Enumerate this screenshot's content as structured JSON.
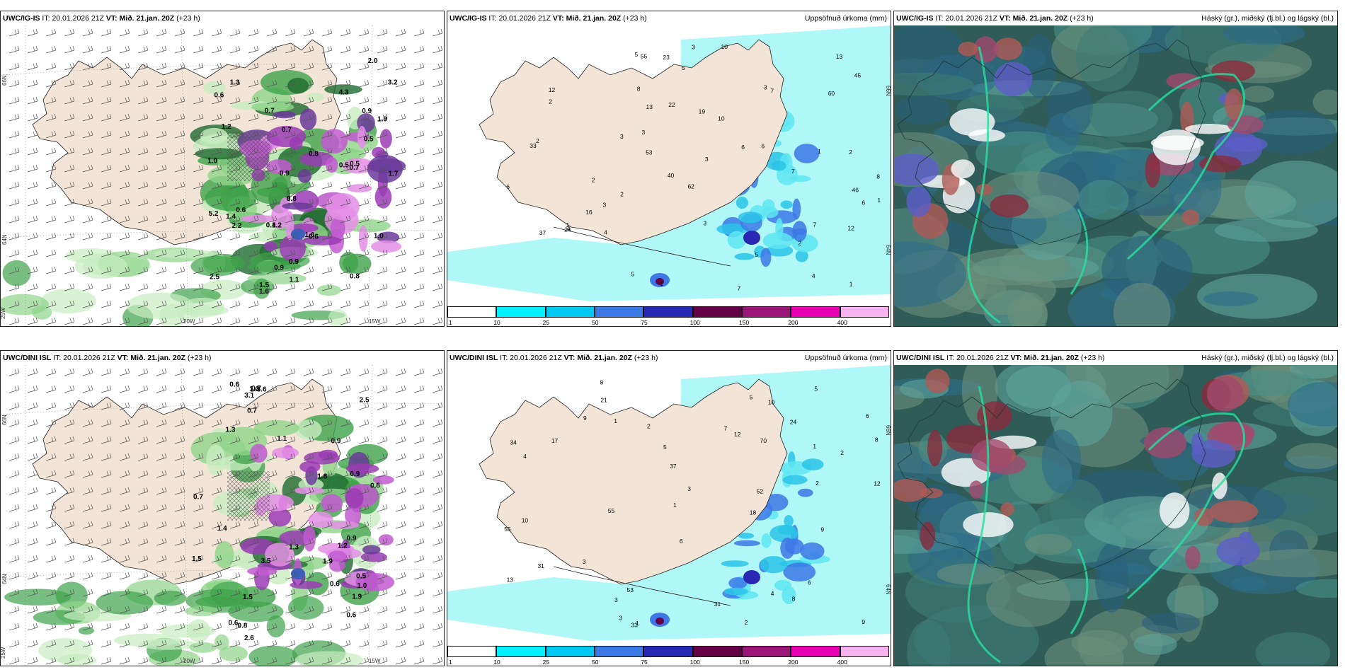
{
  "panels": [
    {
      "id": "tl",
      "kind": "snow",
      "model": "UWC/IG-IS",
      "it_label": "IT:",
      "it_value": "20.01.2026 21Z",
      "vt_label": "VT:",
      "vt_value": "Mið. 21.jan. 20Z",
      "lead": "(+23 h)",
      "right_title": "",
      "lat_labels": [
        "66N",
        "64N"
      ],
      "lon_labels": [
        "25W",
        "20W",
        "15W"
      ],
      "values": [
        "0.5",
        "0.8",
        "0.5",
        "0.8",
        "0.9",
        "0.7",
        "0.9",
        "1.4",
        "1.2",
        "1.7",
        "2.2",
        "1.3",
        "1.5",
        "1.9",
        "2.5",
        "3.2",
        "0.6",
        "0.7",
        "1.0",
        "0.8",
        "1.0",
        "0.6",
        "0.6",
        "0.7",
        "0.4",
        "1.0",
        "0.9",
        "1.2",
        "2.0",
        "0.9",
        "0.5",
        "1.1",
        "1.6",
        "4.3",
        "5.2"
      ]
    },
    {
      "id": "tm",
      "kind": "precip",
      "model": "UWC/IG-IS",
      "it_label": "IT:",
      "it_value": "20.01.2026 21Z",
      "vt_label": "VT:",
      "vt_value": "Mið. 21.jan. 20Z",
      "lead": "(+23 h)",
      "right_title": "Uppsöfnuð úrkoma (mm)",
      "lat_labels": [
        "66N",
        "64N"
      ],
      "lon_labels": [],
      "values": [
        "2",
        "3",
        "4",
        "10",
        "5",
        "5",
        "6",
        "6",
        "2",
        "3",
        "12",
        "2",
        "3",
        "3",
        "7",
        "2",
        "5",
        "8",
        "33",
        "16",
        "4",
        "5",
        "6",
        "60",
        "53",
        "46",
        "12",
        "19",
        "40",
        "55",
        "37",
        "62",
        "45",
        "22",
        "23",
        "24",
        "13",
        "10",
        "13",
        "7",
        "3",
        "1",
        "1",
        "1",
        "2",
        "4",
        "7",
        "3",
        "8",
        "6",
        "7",
        "2",
        "1",
        "1",
        "3"
      ],
      "colorbar": {
        "labels": [
          "1",
          "10",
          "25",
          "50",
          "75",
          "100",
          "150",
          "200",
          "400"
        ],
        "colors": [
          "#ffffff",
          "#00f0ff",
          "#00c8f0",
          "#3c78e6",
          "#2828b4",
          "#640046",
          "#9b1478",
          "#e600b4",
          "#f5b4f0"
        ]
      }
    },
    {
      "id": "tr",
      "kind": "cloud",
      "model": "UWC/IG-IS",
      "it_label": "IT:",
      "it_value": "20.01.2026 21Z",
      "vt_label": "VT:",
      "vt_value": "Mið. 21.jan. 20Z",
      "lead": "(+23 h)",
      "right_title": "Háský (gr.), miðský (fj.bl.) og lágský (bl.)",
      "lat_labels": [],
      "lon_labels": [],
      "values": []
    },
    {
      "id": "bl",
      "kind": "snow",
      "model": "UWC/DINI ISL",
      "it_label": "IT:",
      "it_value": "20.01.2026 21Z",
      "vt_label": "VT:",
      "vt_value": "Mið. 21.jan. 20Z",
      "lead": "(+23 h)",
      "right_title": "",
      "lat_labels": [
        "66N",
        "64N"
      ],
      "lon_labels": [
        "25W",
        "20W",
        "15W"
      ],
      "values": [
        "1.1",
        "0.6",
        "0.9",
        "0.6",
        "1.3",
        "1.9",
        "1.0",
        "2.6",
        "1.8",
        "1.4",
        "3.5",
        "1.5",
        "0.7",
        "0.9",
        "0.6",
        "0.5",
        "2.5",
        "1.3",
        "1.9",
        "0.8",
        "0.6",
        "0.7",
        "0.8",
        "0.9",
        "1.2",
        "3.1",
        "1.5",
        "5.6",
        "1.0",
        "0.7"
      ]
    },
    {
      "id": "bm",
      "kind": "precip",
      "model": "UWC/DINI ISL",
      "it_label": "IT:",
      "it_value": "20.01.2026 21Z",
      "vt_label": "VT:",
      "vt_value": "Mið. 21.jan. 20Z",
      "lead": "(+23 h)",
      "right_title": "Uppsöfnuð úrkoma (mm)",
      "lat_labels": [
        "66N",
        "64N"
      ],
      "lon_labels": [],
      "values": [
        "1",
        "2",
        "3",
        "5",
        "6",
        "8",
        "7",
        "8",
        "1",
        "9",
        "12",
        "18",
        "31",
        "33",
        "52",
        "53",
        "55",
        "70",
        "55",
        "24",
        "34",
        "37",
        "17",
        "13",
        "12",
        "10",
        "8",
        "6",
        "5",
        "3",
        "4",
        "2",
        "21",
        "31",
        "10",
        "9",
        "9",
        "6",
        "3",
        "2",
        "1",
        "5",
        "4",
        "3",
        "1",
        "2"
      ],
      "colorbar": {
        "labels": [
          "1",
          "10",
          "25",
          "50",
          "75",
          "100",
          "150",
          "200",
          "400"
        ],
        "colors": [
          "#ffffff",
          "#00f0ff",
          "#00c8f0",
          "#3c78e6",
          "#2828b4",
          "#640046",
          "#9b1478",
          "#e600b4",
          "#f5b4f0"
        ]
      }
    },
    {
      "id": "br",
      "kind": "cloud",
      "model": "UWC/DINI ISL",
      "it_label": "IT:",
      "it_value": "20.01.2026 21Z",
      "vt_label": "VT:",
      "vt_value": "Mið. 21.jan. 20Z",
      "lead": "(+23 h)",
      "right_title": "Háský (gr.), miðský (fj.bl.) og lágský (bl.)",
      "lat_labels": [],
      "lon_labels": [],
      "values": []
    }
  ]
}
